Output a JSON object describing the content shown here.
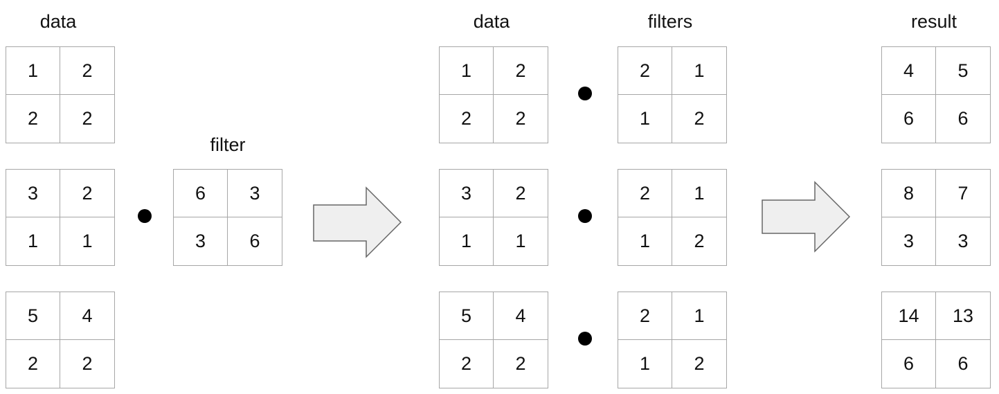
{
  "left": {
    "data_label": "data",
    "data": [
      [
        1,
        2,
        2,
        2
      ],
      [
        3,
        2,
        1,
        1
      ],
      [
        5,
        4,
        2,
        2
      ]
    ],
    "filter_label": "filter",
    "filter": [
      6,
      3,
      3,
      6
    ]
  },
  "middle": {
    "data_label": "data",
    "data": [
      [
        1,
        2,
        2,
        2
      ],
      [
        3,
        2,
        1,
        1
      ],
      [
        5,
        4,
        2,
        2
      ]
    ],
    "filters_label": "filters",
    "filters": [
      [
        2,
        1,
        1,
        2
      ],
      [
        2,
        1,
        1,
        2
      ],
      [
        2,
        1,
        1,
        2
      ]
    ]
  },
  "right": {
    "result_label": "result",
    "result": [
      [
        4,
        5,
        6,
        6
      ],
      [
        8,
        7,
        3,
        3
      ],
      [
        14,
        13,
        6,
        6
      ]
    ]
  },
  "colors": {
    "grid_border": "#a6a6a6",
    "arrow_fill": "#efefef",
    "arrow_stroke": "#666666"
  },
  "icons": {
    "dot_product": "filled-circle",
    "transition": "right-arrow"
  }
}
